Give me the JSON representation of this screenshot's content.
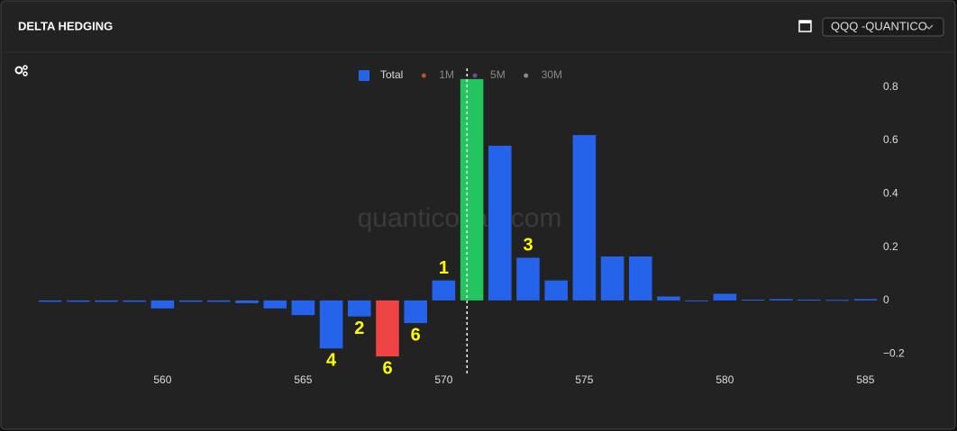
{
  "header": {
    "title": "DELTA HEDGING",
    "selector": "QQQ -QUANTICO"
  },
  "chart_data": {
    "type": "bar",
    "watermark": "quanticocap.com",
    "x": [
      556,
      557,
      558,
      559,
      560,
      561,
      562,
      563,
      564,
      565,
      566,
      567,
      568,
      569,
      570,
      571,
      572,
      573,
      574,
      575,
      576,
      577,
      578,
      579,
      580,
      581,
      582,
      583,
      584,
      585
    ],
    "series": [
      {
        "name": "Total",
        "color": "#2563eb",
        "values": [
          -0.005,
          -0.005,
          -0.005,
          -0.005,
          -0.03,
          -0.005,
          -0.005,
          -0.01,
          -0.03,
          -0.055,
          -0.18,
          -0.06,
          -0.21,
          -0.085,
          0.075,
          0.83,
          0.58,
          0.16,
          0.075,
          0.62,
          0.165,
          0.165,
          0.015,
          -0.003,
          0.025,
          0.003,
          0.005,
          0.003,
          0.002,
          0.005
        ],
        "colors": [
          "#2563eb",
          "#2563eb",
          "#2563eb",
          "#2563eb",
          "#2563eb",
          "#2563eb",
          "#2563eb",
          "#2563eb",
          "#2563eb",
          "#2563eb",
          "#2563eb",
          "#2563eb",
          "#ef4444",
          "#2563eb",
          "#2563eb",
          "#22c55e",
          "#2563eb",
          "#2563eb",
          "#2563eb",
          "#2563eb",
          "#2563eb",
          "#2563eb",
          "#2563eb",
          "#2563eb",
          "#2563eb",
          "#2563eb",
          "#2563eb",
          "#2563eb",
          "#2563eb",
          "#2563eb"
        ]
      }
    ],
    "inactive_legend": [
      {
        "name": "1M",
        "color": "#b5532a"
      },
      {
        "name": "5M",
        "color": "#6d4c8f"
      },
      {
        "name": "30M",
        "color": "#8a8a8a"
      }
    ],
    "xlim": [
      555.5,
      585.5
    ],
    "xticks": [
      560,
      565,
      570,
      575,
      580,
      585
    ],
    "ylim": [
      -0.25,
      0.87
    ],
    "yticks": [
      {
        "value": -0.2,
        "label": "−0.2"
      },
      0,
      0.2,
      0.4,
      0.6,
      0.8
    ],
    "reference_line": 570.83,
    "annotations": [
      {
        "text": "1",
        "x": 570
      },
      {
        "text": "3",
        "x": 573
      },
      {
        "text": "2",
        "x": 567
      },
      {
        "text": "6",
        "x": 568
      },
      {
        "text": "6",
        "x": 569
      },
      {
        "text": "4",
        "x": 566
      }
    ],
    "annotation_color": "#ffff00",
    "grid": false
  }
}
